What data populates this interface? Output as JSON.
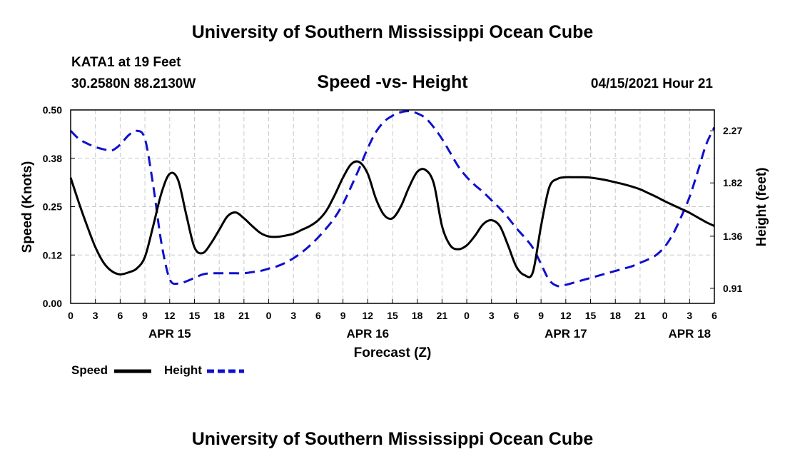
{
  "header": {
    "title_top": "University of Southern Mississippi Ocean Cube",
    "title_bottom": "University of Southern Mississippi Ocean Cube",
    "station": "KATA1 at 19 Feet",
    "coords": "30.2580N  88.2130W",
    "plot_title": "Speed -vs- Height",
    "timestamp": "04/15/2021 Hour 21"
  },
  "legend": {
    "speed_label": "Speed",
    "height_label": "Height"
  },
  "colors": {
    "speed": "#000000",
    "height": "#1010cc",
    "grid": "#c8c8c8"
  },
  "chart_data": {
    "type": "line",
    "title": "Speed -vs- Height",
    "xlabel": "Forecast (Z)",
    "ylabel": "Speed (Knots)",
    "y2label": "Height (feet)",
    "x_hours_range": [
      0,
      78
    ],
    "x_tick_hours": [
      0,
      3,
      6,
      9,
      12,
      15,
      18,
      21,
      24,
      27,
      30,
      33,
      36,
      39,
      42,
      45,
      48,
      51,
      54,
      57,
      60,
      63,
      66,
      69,
      72,
      75,
      78
    ],
    "x_tick_labels": [
      "0",
      "3",
      "6",
      "9",
      "12",
      "15",
      "18",
      "21",
      "0",
      "3",
      "6",
      "9",
      "12",
      "15",
      "18",
      "21",
      "0",
      "3",
      "6",
      "9",
      "12",
      "15",
      "18",
      "21",
      "0",
      "3",
      "6"
    ],
    "date_labels": [
      {
        "hour": 12,
        "label": "APR 15"
      },
      {
        "hour": 36,
        "label": "APR 16"
      },
      {
        "hour": 60,
        "label": "APR 17"
      },
      {
        "hour": 75,
        "label": "APR 18"
      }
    ],
    "ylim": [
      0,
      0.5
    ],
    "y_ticks": [
      0.0,
      0.125,
      0.25,
      0.375,
      0.5
    ],
    "y_tick_labels": [
      "0.00",
      "0.12",
      "0.25",
      "0.38",
      "0.50"
    ],
    "y2lim": [
      0.78,
      2.45
    ],
    "y2_ticks": [
      0.91,
      1.36,
      1.82,
      2.27
    ],
    "y2_tick_labels": [
      "0.91",
      "1.36",
      "1.82",
      "2.27"
    ],
    "series": [
      {
        "name": "Speed",
        "axis": "left",
        "style": "solid",
        "x": [
          0,
          1,
          2,
          3,
          4,
          5,
          6,
          7,
          8,
          9,
          10,
          11,
          12,
          13,
          14,
          15,
          16,
          17,
          18,
          19,
          20,
          21,
          22,
          23,
          24,
          25,
          26,
          27,
          28,
          29,
          30,
          31,
          32,
          33,
          34,
          35,
          36,
          37,
          38,
          39,
          40,
          41,
          42,
          43,
          44,
          45,
          46,
          47,
          48,
          49,
          50,
          51,
          52,
          53,
          54,
          55,
          56,
          57,
          58,
          59,
          60,
          61,
          62,
          63,
          64,
          65,
          66,
          67,
          68,
          69,
          70,
          71,
          72,
          73,
          74,
          75,
          76,
          77,
          78
        ],
        "values": [
          0.325,
          0.26,
          0.2,
          0.145,
          0.105,
          0.083,
          0.075,
          0.08,
          0.09,
          0.12,
          0.2,
          0.285,
          0.335,
          0.32,
          0.23,
          0.145,
          0.13,
          0.155,
          0.19,
          0.225,
          0.235,
          0.22,
          0.2,
          0.182,
          0.173,
          0.172,
          0.175,
          0.18,
          0.19,
          0.2,
          0.215,
          0.24,
          0.28,
          0.325,
          0.36,
          0.365,
          0.335,
          0.27,
          0.228,
          0.22,
          0.25,
          0.3,
          0.34,
          0.345,
          0.31,
          0.2,
          0.15,
          0.14,
          0.15,
          0.175,
          0.205,
          0.215,
          0.2,
          0.15,
          0.095,
          0.073,
          0.08,
          0.2,
          0.3,
          0.322,
          0.326,
          0.326,
          0.326,
          0.325,
          0.322,
          0.318,
          0.313,
          0.308,
          0.302,
          0.295,
          0.285,
          0.275,
          0.264,
          0.254,
          0.244,
          0.234,
          0.222,
          0.21,
          0.2
        ]
      },
      {
        "name": "Height",
        "axis": "right",
        "style": "dashed",
        "x": [
          0,
          1,
          2,
          3,
          4,
          5,
          6,
          7,
          8,
          9,
          10,
          11,
          12,
          13,
          14,
          15,
          16,
          17,
          18,
          19,
          20,
          21,
          22,
          23,
          24,
          25,
          26,
          27,
          28,
          29,
          30,
          31,
          32,
          33,
          34,
          35,
          36,
          37,
          38,
          39,
          40,
          41,
          42,
          43,
          44,
          45,
          46,
          47,
          48,
          49,
          50,
          51,
          52,
          53,
          54,
          55,
          56,
          57,
          58,
          59,
          60,
          61,
          62,
          63,
          64,
          65,
          66,
          67,
          68,
          69,
          70,
          71,
          72,
          73,
          74,
          75,
          76,
          77,
          78
        ],
        "values": [
          2.27,
          2.2,
          2.16,
          2.13,
          2.11,
          2.1,
          2.15,
          2.23,
          2.27,
          2.2,
          1.8,
          1.3,
          0.99,
          0.95,
          0.97,
          1.0,
          1.03,
          1.04,
          1.04,
          1.04,
          1.04,
          1.04,
          1.05,
          1.06,
          1.08,
          1.1,
          1.13,
          1.17,
          1.22,
          1.28,
          1.35,
          1.43,
          1.52,
          1.64,
          1.79,
          1.95,
          2.12,
          2.26,
          2.35,
          2.4,
          2.43,
          2.44,
          2.42,
          2.38,
          2.3,
          2.2,
          2.08,
          1.96,
          1.87,
          1.8,
          1.74,
          1.67,
          1.6,
          1.52,
          1.43,
          1.35,
          1.26,
          1.12,
          0.98,
          0.93,
          0.94,
          0.96,
          0.98,
          1.0,
          1.02,
          1.04,
          1.06,
          1.08,
          1.1,
          1.13,
          1.16,
          1.2,
          1.27,
          1.38,
          1.53,
          1.7,
          1.92,
          2.15,
          2.3
        ]
      }
    ]
  }
}
